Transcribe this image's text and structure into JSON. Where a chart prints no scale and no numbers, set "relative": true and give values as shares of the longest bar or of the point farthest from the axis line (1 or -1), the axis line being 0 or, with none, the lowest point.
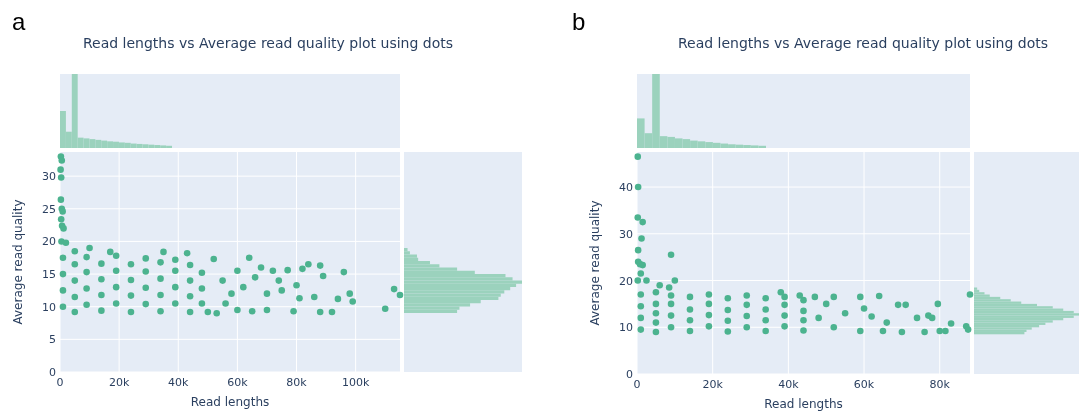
{
  "chart_data": [
    {
      "type": "scatter",
      "xlabel": "Read lengths",
      "ylabel": "Average read quality",
      "annotations": [
        "a"
      ],
      "marker": "circle",
      "grid": true,
      "xlim": [
        0,
        115000
      ],
      "xticks": [
        0,
        {
          "value": 20000,
          "label": "20k"
        },
        {
          "value": 40000,
          "label": "40k"
        },
        {
          "value": 60000,
          "label": "60k"
        },
        {
          "value": 80000,
          "label": "80k"
        },
        {
          "value": 100000,
          "label": "100k"
        }
      ],
      "ylim": [
        0,
        33.7
      ],
      "yticks": [
        0,
        5,
        10,
        15,
        20,
        25,
        30
      ],
      "series": [
        {
          "color": "#4cb38f",
          "x": [
            300,
            600,
            200,
            400,
            300,
            600,
            900,
            400,
            700,
            1200,
            500,
            2000,
            10000,
            17000,
            35000,
            43000,
            1000,
            1000,
            1000,
            1000,
            5000,
            5000,
            5000,
            5000,
            5000,
            9000,
            9000,
            9000,
            9000,
            14000,
            14000,
            14000,
            14000,
            19000,
            19000,
            19000,
            19000,
            24000,
            24000,
            24000,
            24000,
            29000,
            29000,
            29000,
            29000,
            34000,
            34000,
            34000,
            34000,
            39000,
            39000,
            39000,
            39000,
            44000,
            44000,
            44000,
            44000,
            48000,
            48000,
            48000,
            50000,
            52000,
            53000,
            55000,
            56000,
            58000,
            60000,
            60000,
            62000,
            64000,
            65000,
            66000,
            68000,
            70000,
            70000,
            72000,
            74000,
            75000,
            77000,
            79000,
            80000,
            81000,
            82000,
            84000,
            86000,
            88000,
            88000,
            89000,
            92000,
            94000,
            96000,
            98000,
            99000,
            110000,
            113000,
            115000
          ],
          "values": [
            33,
            32.4,
            31,
            29.8,
            26.4,
            25,
            24.6,
            23.4,
            22.4,
            22,
            20,
            19.8,
            19,
            18.4,
            18.4,
            18.2,
            10,
            12.5,
            15,
            17.5,
            9.2,
            11.5,
            14,
            16.5,
            18.5,
            10.3,
            12.8,
            15.3,
            17.6,
            9.4,
            11.8,
            14.2,
            16.6,
            10.5,
            13,
            15.5,
            17.8,
            9.2,
            11.7,
            14.1,
            16.5,
            10.4,
            12.9,
            15.4,
            17.4,
            9.3,
            11.8,
            14.3,
            16.8,
            10.5,
            13,
            15.5,
            17.2,
            9.2,
            11.6,
            14,
            16.4,
            10.5,
            12.8,
            15.2,
            9.2,
            17.3,
            9,
            14,
            10.5,
            12,
            15.5,
            9.5,
            13,
            17.5,
            9.3,
            14.5,
            16,
            12,
            9.5,
            15.5,
            14,
            12.5,
            15.6,
            9.3,
            13.3,
            11.3,
            15.8,
            16.5,
            11.5,
            9.2,
            16.3,
            14.7,
            9.2,
            11.2,
            15.3,
            12,
            10.8,
            9.7,
            12.7,
            11.8
          ]
        }
      ]
    },
    {
      "type": "bar",
      "title": "Read lengths vs Average read quality plot using dots",
      "relative": true,
      "color": "#9bd2bd",
      "categories": [
        null,
        null,
        null,
        null,
        null,
        null,
        null,
        null,
        null,
        null,
        null,
        null,
        null,
        null,
        null,
        null,
        null,
        null,
        null
      ],
      "values": [
        0.5,
        0.22,
        1,
        0.14,
        0.13,
        0.12,
        0.11,
        0.1,
        0.09,
        0.085,
        0.075,
        0.07,
        0.06,
        0.055,
        0.05,
        0.045,
        0.04,
        0.035,
        0.03
      ]
    },
    {
      "type": "bar",
      "orientation": "horizontal",
      "relative": true,
      "color": "#9bd2bd",
      "categories": [
        null,
        null,
        null,
        null,
        null,
        null,
        null,
        null,
        null,
        null,
        null,
        null,
        null,
        null,
        null,
        null,
        null,
        null,
        null,
        null
      ],
      "values": [
        0.03,
        0.05,
        0.11,
        0.12,
        0.22,
        0.3,
        0.45,
        0.6,
        0.86,
        0.92,
        1,
        0.95,
        0.9,
        0.85,
        0.82,
        0.8,
        0.65,
        0.56,
        0.47,
        0.45
      ]
    },
    {
      "type": "scatter",
      "xlabel": "Read lengths",
      "ylabel": "Average read quality",
      "annotations": [
        "b"
      ],
      "marker": "circle",
      "grid": true,
      "xlim": [
        0,
        88000
      ],
      "xticks": [
        0,
        {
          "value": 20000,
          "label": "20k"
        },
        {
          "value": 40000,
          "label": "40k"
        },
        {
          "value": 60000,
          "label": "60k"
        },
        {
          "value": 80000,
          "label": "80k"
        }
      ],
      "ylim": [
        0,
        47.5
      ],
      "yticks": [
        0,
        10,
        20,
        30,
        40
      ],
      "series": [
        {
          "color": "#4cb38f",
          "x": [
            200,
            300,
            200,
            1500,
            1200,
            300,
            9000,
            300,
            800,
            1500,
            1000,
            2500,
            10000,
            200,
            6000,
            8500,
            1000,
            1000,
            1000,
            1000,
            5000,
            5000,
            5000,
            5000,
            5000,
            9000,
            9000,
            9000,
            9000,
            14000,
            14000,
            14000,
            14000,
            19000,
            19000,
            19000,
            19000,
            24000,
            24000,
            24000,
            24000,
            29000,
            29000,
            29000,
            29000,
            34000,
            34000,
            34000,
            34000,
            39000,
            39000,
            39000,
            39000,
            44000,
            44000,
            44000,
            44000,
            38000,
            43000,
            47000,
            48000,
            50000,
            52000,
            52000,
            55000,
            59000,
            59000,
            60000,
            62000,
            64000,
            65000,
            66000,
            69000,
            70000,
            71000,
            74000,
            76000,
            77000,
            78000,
            79500,
            80000,
            81500,
            83000,
            87000,
            87500,
            88000
          ],
          "values": [
            46.5,
            40,
            33.5,
            32.5,
            29,
            26.5,
            25.5,
            24,
            23.5,
            23.3,
            21.5,
            20,
            20,
            20,
            19,
            18.5,
            9.5,
            12,
            14.5,
            17,
            9,
            11,
            13,
            15,
            17.5,
            10,
            12.5,
            15,
            16.8,
            9.2,
            11.5,
            13.8,
            16.5,
            10.2,
            12.6,
            15,
            17,
            9.1,
            11.4,
            13.7,
            16.2,
            10,
            12.4,
            14.8,
            16.8,
            9.2,
            11.5,
            13.8,
            16.2,
            10.2,
            12.5,
            14.8,
            16.5,
            9.3,
            11.5,
            13.5,
            15.8,
            17.5,
            16.8,
            16.5,
            12,
            15,
            16.5,
            10,
            13,
            16.5,
            9.2,
            14,
            12.3,
            16.7,
            9.2,
            11,
            14.8,
            9,
            14.8,
            12,
            9,
            12.5,
            12,
            15,
            9.2,
            9.2,
            10.8,
            10.2,
            9.5,
            17
          ]
        }
      ]
    },
    {
      "type": "bar",
      "title": "Read lengths vs Average read quality plot using dots",
      "relative": true,
      "color": "#9bd2bd",
      "categories": [
        null,
        null,
        null,
        null,
        null,
        null,
        null,
        null,
        null,
        null,
        null,
        null,
        null,
        null,
        null,
        null,
        null
      ],
      "values": [
        0.4,
        0.2,
        1,
        0.16,
        0.15,
        0.13,
        0.12,
        0.1,
        0.09,
        0.08,
        0.07,
        0.06,
        0.05,
        0.045,
        0.04,
        0.035,
        0.03
      ]
    },
    {
      "type": "bar",
      "orientation": "horizontal",
      "relative": true,
      "color": "#9bd2bd",
      "categories": [
        null,
        null,
        null,
        null,
        null,
        null,
        null,
        null,
        null,
        null,
        null,
        null,
        null,
        null,
        null,
        null,
        null,
        null,
        null,
        null
      ],
      "values": [
        0.03,
        0.05,
        0.1,
        0.15,
        0.25,
        0.35,
        0.45,
        0.6,
        0.75,
        0.85,
        0.95,
        1,
        0.95,
        0.85,
        0.75,
        0.68,
        0.62,
        0.55,
        0.5,
        0.48
      ]
    }
  ]
}
